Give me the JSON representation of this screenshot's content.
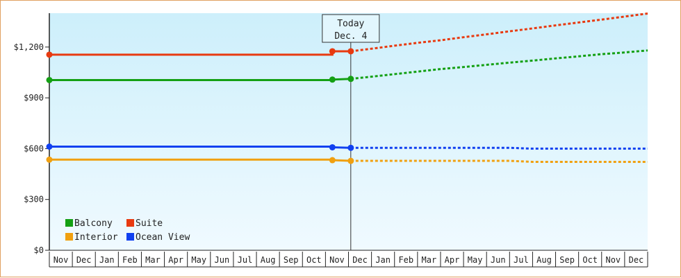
{
  "chart_data": {
    "type": "line",
    "title": "",
    "xlabel": "",
    "ylabel": "",
    "ylim": [
      0,
      1400
    ],
    "yticks": [
      0,
      300,
      600,
      900,
      1200
    ],
    "ytick_labels": [
      "$0",
      "$300",
      "$600",
      "$900",
      "$1,200"
    ],
    "months": [
      "Nov",
      "Dec",
      "Jan",
      "Feb",
      "Mar",
      "Apr",
      "May",
      "Jun",
      "Jul",
      "Aug",
      "Sep",
      "Oct",
      "Nov",
      "Dec",
      "Jan",
      "Feb",
      "Mar",
      "Apr",
      "May",
      "Jun",
      "Jul",
      "Aug",
      "Sep",
      "Oct",
      "Nov",
      "Dec"
    ],
    "today": {
      "label_line1": "Today",
      "label_line2": "Dec. 4",
      "month_position": 13.1
    },
    "series": [
      {
        "name": "Suite",
        "color": "#e83a10",
        "history": [
          [
            0,
            1155
          ],
          [
            12.3,
            1155
          ],
          [
            12.3,
            1175
          ],
          [
            13.1,
            1175
          ]
        ],
        "forecast": [
          [
            13.1,
            1175
          ],
          [
            14,
            1190
          ],
          [
            15,
            1208
          ],
          [
            16,
            1225
          ],
          [
            17,
            1240
          ],
          [
            18,
            1258
          ],
          [
            19,
            1275
          ],
          [
            20,
            1293
          ],
          [
            21,
            1310
          ],
          [
            22,
            1328
          ],
          [
            23,
            1345
          ],
          [
            24,
            1362
          ],
          [
            25,
            1380
          ],
          [
            26,
            1398
          ]
        ],
        "markers": [
          0,
          12.3,
          13.1
        ]
      },
      {
        "name": "Balcony",
        "color": "#14a014",
        "history": [
          [
            0,
            1005
          ],
          [
            12.3,
            1005
          ],
          [
            12.3,
            1008
          ],
          [
            13.1,
            1012
          ]
        ],
        "forecast": [
          [
            13.1,
            1012
          ],
          [
            14,
            1025
          ],
          [
            15,
            1040
          ],
          [
            16,
            1055
          ],
          [
            17,
            1070
          ],
          [
            18,
            1082
          ],
          [
            19,
            1095
          ],
          [
            20,
            1108
          ],
          [
            21,
            1120
          ],
          [
            22,
            1133
          ],
          [
            23,
            1145
          ],
          [
            24,
            1158
          ],
          [
            25,
            1168
          ],
          [
            26,
            1180
          ]
        ],
        "markers": [
          0,
          12.3,
          13.1
        ]
      },
      {
        "name": "Ocean View",
        "color": "#1040f0",
        "history": [
          [
            0,
            612
          ],
          [
            12.3,
            612
          ],
          [
            12.3,
            608
          ],
          [
            13.1,
            605
          ]
        ],
        "forecast": [
          [
            13.1,
            605
          ],
          [
            16,
            605
          ],
          [
            20,
            605
          ],
          [
            21,
            600
          ],
          [
            26,
            600
          ]
        ],
        "markers": [
          0,
          12.3,
          13.1
        ]
      },
      {
        "name": "Interior",
        "color": "#f0a010",
        "history": [
          [
            0,
            535
          ],
          [
            12.3,
            535
          ],
          [
            12.3,
            532
          ],
          [
            13.1,
            528
          ]
        ],
        "forecast": [
          [
            13.1,
            528
          ],
          [
            16,
            528
          ],
          [
            20,
            528
          ],
          [
            21,
            522
          ],
          [
            26,
            522
          ]
        ],
        "markers": [
          0,
          12.3,
          13.1
        ]
      }
    ],
    "legend": {
      "placement": "bottom-left",
      "rows": [
        [
          "Balcony",
          "Suite"
        ],
        [
          "Interior",
          "Ocean View"
        ]
      ]
    },
    "background_gradient": [
      "#cdeffb",
      "#f0faff"
    ]
  }
}
